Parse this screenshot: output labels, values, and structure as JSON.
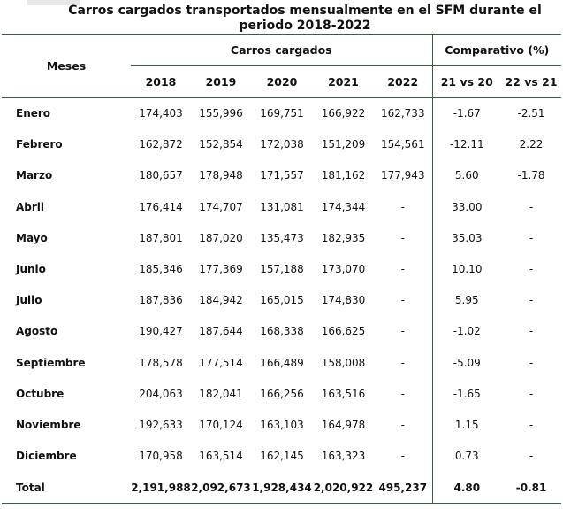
{
  "title": "Carros cargados transportados mensualmente en el SFM durante el periodo 2018-2022",
  "header": {
    "months_label": "Meses",
    "group_carros": "Carros cargados",
    "group_comp": "Comparativo (%)",
    "years": [
      "2018",
      "2019",
      "2020",
      "2021",
      "2022"
    ],
    "comparisons": [
      "21 vs 20",
      "22 vs 21"
    ]
  },
  "rows": [
    {
      "month": "Enero",
      "v": [
        "174,403",
        "155,996",
        "169,751",
        "166,922",
        "162,733"
      ],
      "c": [
        "-1.67",
        "-2.51"
      ]
    },
    {
      "month": "Febrero",
      "v": [
        "162,872",
        "152,854",
        "172,038",
        "151,209",
        "154,561"
      ],
      "c": [
        "-12.11",
        "2.22"
      ]
    },
    {
      "month": "Marzo",
      "v": [
        "180,657",
        "178,948",
        "171,557",
        "181,162",
        "177,943"
      ],
      "c": [
        "5.60",
        "-1.78"
      ]
    },
    {
      "month": "Abril",
      "v": [
        "176,414",
        "174,707",
        "131,081",
        "174,344",
        "-"
      ],
      "c": [
        "33.00",
        "-"
      ]
    },
    {
      "month": "Mayo",
      "v": [
        "187,801",
        "187,020",
        "135,473",
        "182,935",
        "-"
      ],
      "c": [
        "35.03",
        "-"
      ]
    },
    {
      "month": "Junio",
      "v": [
        "185,346",
        "177,369",
        "157,188",
        "173,070",
        "-"
      ],
      "c": [
        "10.10",
        "-"
      ]
    },
    {
      "month": "Julio",
      "v": [
        "187,836",
        "184,942",
        "165,015",
        "174,830",
        "-"
      ],
      "c": [
        "5.95",
        "-"
      ]
    },
    {
      "month": "Agosto",
      "v": [
        "190,427",
        "187,644",
        "168,338",
        "166,625",
        "-"
      ],
      "c": [
        "-1.02",
        "-"
      ]
    },
    {
      "month": "Septiembre",
      "v": [
        "178,578",
        "177,514",
        "166,489",
        "158,008",
        "-"
      ],
      "c": [
        "-5.09",
        "-"
      ]
    },
    {
      "month": "Octubre",
      "v": [
        "204,063",
        "182,041",
        "166,256",
        "163,516",
        "-"
      ],
      "c": [
        "-1.65",
        "-"
      ]
    },
    {
      "month": "Noviembre",
      "v": [
        "192,633",
        "170,124",
        "163,103",
        "164,978",
        "-"
      ],
      "c": [
        "1.15",
        "-"
      ]
    },
    {
      "month": "Diciembre",
      "v": [
        "170,958",
        "163,514",
        "162,145",
        "163,323",
        "-"
      ],
      "c": [
        "0.73",
        "-"
      ]
    }
  ],
  "total": {
    "month": "Total",
    "v": [
      "2,191,988",
      "2,092,673",
      "1,928,434",
      "2,020,922",
      "495,237"
    ],
    "c": [
      "4.80",
      "-0.81"
    ]
  }
}
